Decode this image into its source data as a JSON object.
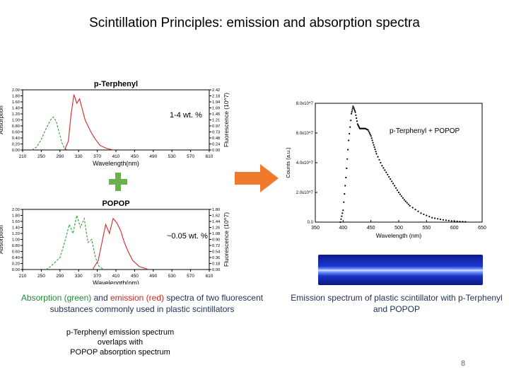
{
  "slide": {
    "title": "Scintillation Principles: emission and absorption spectra",
    "page_number": "8"
  },
  "annotations": {
    "conc_pterphenyl": "1-4 wt. %",
    "conc_popop": "~0.05 wt. %",
    "combined_label": "p-Terphenyl + POPOP"
  },
  "captions": {
    "left_part1": "Absorption (green)",
    "left_part2": " and ",
    "left_part3": "emission (red)",
    "left_part4": " spectra of two fluorescent substances commonly used in plastic scintillators",
    "right": "Emission spectrum of plastic scintillator with p-Terphenyl and POPOP",
    "note_line1": "p-Terphenyl emission spectrum",
    "note_line2": "overlaps with",
    "note_line3": "POPOP absorption spectrum"
  },
  "colors": {
    "absorption": "#2ca02c",
    "emission": "#d62728",
    "arrow": "#f07a2c",
    "plus": "#6ab04c",
    "caption_text": "#1f2f55"
  },
  "icons": {
    "plus": "plus-icon",
    "arrow": "right-arrow-icon"
  },
  "chart_data": [
    {
      "type": "line",
      "title": "p-Terphenyl",
      "xlabel": "Wavelength(nm)",
      "ylabel": "Absorption",
      "y2label": "Fluorescence (10^7)",
      "xlim": [
        210,
        610
      ],
      "ylim": [
        0,
        2.0
      ],
      "y2lim": [
        0,
        2.42
      ],
      "x_ticks": [
        "210",
        "250",
        "290",
        "330",
        "370",
        "410",
        "450",
        "490",
        "530",
        "570",
        "610"
      ],
      "y_ticks": [
        "0.00",
        "0.20",
        "0.40",
        "0.60",
        "0.80",
        "1.00",
        "1.20",
        "1.40",
        "1.60",
        "1.80",
        "2.00"
      ],
      "y2_ticks": [
        "0.00",
        "0.24",
        "0.48",
        "0.73",
        "0.97",
        "1.21",
        "1.45",
        "1.69",
        "1.94",
        "2.18",
        "2.42"
      ],
      "series": [
        {
          "name": "Absorption",
          "style": "dashed",
          "color": "#2ca02c",
          "x": [
            230,
            240,
            250,
            260,
            270,
            276,
            282,
            288,
            294,
            300,
            306
          ],
          "y": [
            0.0,
            0.1,
            0.35,
            0.7,
            1.0,
            1.1,
            0.95,
            0.6,
            0.25,
            0.05,
            0.0
          ]
        },
        {
          "name": "Emission",
          "style": "solid",
          "color": "#d62728",
          "x": [
            300,
            308,
            314,
            320,
            326,
            332,
            338,
            344,
            350,
            358,
            366,
            376,
            390,
            405
          ],
          "y": [
            0.0,
            0.3,
            1.2,
            1.84,
            1.55,
            1.7,
            1.35,
            1.0,
            0.8,
            0.55,
            0.35,
            0.15,
            0.05,
            0.0
          ]
        }
      ]
    },
    {
      "type": "line",
      "title": "POPOP",
      "xlabel": "Wavelength(nm)",
      "ylabel": "Absorption",
      "y2label": "Fluorescence (10^7)",
      "xlim": [
        210,
        610
      ],
      "ylim": [
        0,
        2.0
      ],
      "y2lim": [
        0,
        1.8
      ],
      "x_ticks": [
        "210",
        "250",
        "290",
        "330",
        "370",
        "410",
        "450",
        "490",
        "530",
        "570",
        "610"
      ],
      "y_ticks": [
        "0.00",
        "0.20",
        "0.40",
        "0.60",
        "0.80",
        "1.00",
        "1.20",
        "1.40",
        "1.60",
        "1.80",
        "2.00"
      ],
      "y2_ticks": [
        "0.00",
        "0.18",
        "0.36",
        "0.54",
        "0.72",
        "0.90",
        "1.08",
        "1.26",
        "1.44",
        "1.62",
        "1.80"
      ],
      "series": [
        {
          "name": "Absorption",
          "style": "dashed",
          "color": "#2ca02c",
          "x": [
            260,
            270,
            280,
            290,
            300,
            310,
            318,
            326,
            334,
            342,
            350,
            358,
            366,
            374,
            384
          ],
          "y": [
            0.0,
            0.1,
            0.25,
            0.4,
            0.9,
            1.5,
            1.2,
            1.8,
            1.4,
            1.7,
            0.9,
            1.0,
            0.4,
            0.1,
            0.0
          ]
        },
        {
          "name": "Emission",
          "style": "solid",
          "color": "#d62728",
          "x": [
            360,
            372,
            380,
            388,
            396,
            404,
            412,
            420,
            428,
            436,
            446,
            460,
            480
          ],
          "y": [
            0.0,
            0.3,
            0.9,
            1.5,
            1.2,
            1.7,
            1.55,
            1.3,
            0.9,
            0.6,
            0.3,
            0.1,
            0.0
          ]
        }
      ]
    },
    {
      "type": "scatter",
      "xlabel": "Wavelength (nm)",
      "ylabel": "Counts (a.u.)",
      "xlim": [
        350,
        650
      ],
      "ylim": [
        0,
        80000000.0
      ],
      "x_ticks": [
        "350",
        "400",
        "450",
        "500",
        "550",
        "600",
        "650"
      ],
      "y_ticks": [
        "0.0",
        "2.0x10^7",
        "4.0x10^7",
        "6.0x10^7",
        "8.0x10^7"
      ],
      "series": [
        {
          "name": "p-Terphenyl + POPOP",
          "color": "#000000",
          "x": [
            395,
            400,
            405,
            410,
            415,
            418,
            422,
            426,
            430,
            435,
            440,
            445,
            450,
            455,
            460,
            470,
            480,
            490,
            500,
            510,
            520,
            540,
            560,
            580,
            600,
            620
          ],
          "y": [
            0.0,
            8000000.0,
            30000000.0,
            55000000.0,
            73000000.0,
            78000000.0,
            74000000.0,
            66000000.0,
            63000000.0,
            63000000.0,
            63000000.0,
            62000000.0,
            58000000.0,
            52000000.0,
            46000000.0,
            38000000.0,
            32000000.0,
            26000000.0,
            20000000.0,
            15000000.0,
            11000000.0,
            6000000.0,
            3000000.0,
            1500000.0,
            600000.0,
            200000.0
          ]
        }
      ]
    }
  ]
}
